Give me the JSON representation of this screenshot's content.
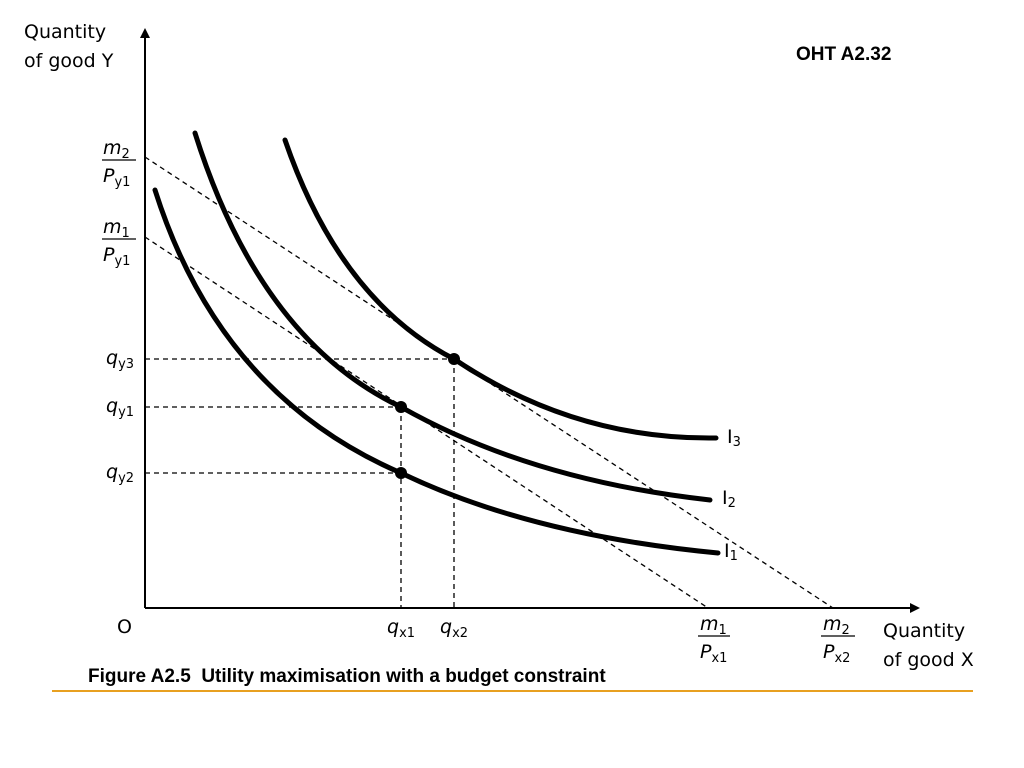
{
  "header": {
    "page_id": "OHT  A2.32"
  },
  "caption": {
    "text": "Figure A2.5  Utility maximisation with a budget constraint"
  },
  "axes": {
    "y_label_line1": "Quantity",
    "y_label_line2": "of good Y",
    "x_label_line1": "Quantity",
    "x_label_line2": "of good X",
    "origin": "O"
  },
  "curves": {
    "i1": {
      "base": "I",
      "sub": "1"
    },
    "i2": {
      "base": "I",
      "sub": "2"
    },
    "i3": {
      "base": "I",
      "sub": "3"
    }
  },
  "y_ticks": {
    "qy3": {
      "base": "q",
      "sub": "y3"
    },
    "qy1": {
      "base": "q",
      "sub": "y1"
    },
    "qy2": {
      "base": "q",
      "sub": "y2"
    },
    "m2": {
      "num": "m",
      "num_sub": "2",
      "den": "P",
      "den_sub": "y1"
    },
    "m1": {
      "num": "m",
      "num_sub": "1",
      "den": "P",
      "den_sub": "y1"
    }
  },
  "x_ticks": {
    "qx1": {
      "base": "q",
      "sub": "x1"
    },
    "qx2": {
      "base": "q",
      "sub": "x2"
    },
    "m1": {
      "num": "m",
      "num_sub": "1",
      "den": "P",
      "den_sub": "x1"
    },
    "m2": {
      "num": "m",
      "num_sub": "2",
      "den": "P",
      "den_sub": "x2"
    }
  },
  "colors": {
    "curves": "#000000",
    "accent_rule": "#e8a020"
  }
}
